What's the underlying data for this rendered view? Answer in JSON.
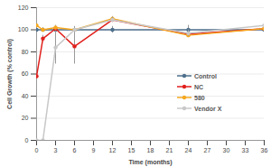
{
  "chart_data": {
    "type": "line",
    "xlabel": "Time (months)",
    "ylabel": "Cell Growth (% control)",
    "x": [
      0,
      1,
      3,
      6,
      12,
      24,
      36
    ],
    "series": [
      {
        "name": "Control",
        "color": "#4d6f8c",
        "values": [
          100,
          100,
          100,
          100,
          100,
          100,
          100
        ],
        "errors": [
          0,
          0,
          0,
          0,
          3,
          4,
          2
        ]
      },
      {
        "name": "NC",
        "color": "#e0201c",
        "values": [
          58,
          92,
          101,
          85,
          109,
          96,
          101
        ],
        "errors": [
          0,
          3,
          2,
          16,
          2,
          2,
          2
        ]
      },
      {
        "name": "580",
        "color": "#f5a81f",
        "values": [
          104,
          100,
          102,
          100,
          110,
          95,
          101
        ],
        "errors": [
          0,
          2,
          2,
          2,
          2,
          2,
          2
        ]
      },
      {
        "name": "Vendor X",
        "color": "#c8c8c8",
        "values": [
          0,
          0,
          84,
          100,
          109,
          97,
          104
        ],
        "errors": [
          0,
          0,
          15,
          3,
          2,
          3,
          2
        ]
      }
    ],
    "xlim": [
      0,
      36
    ],
    "xticks": [
      0,
      3,
      6,
      9,
      12,
      15,
      18,
      21,
      24,
      27,
      30,
      33,
      36
    ],
    "ylim": [
      0,
      120
    ],
    "yticks": [
      0,
      20,
      40,
      60,
      80,
      100,
      120
    ],
    "grid": true,
    "legend": "right",
    "marker": "circle"
  }
}
